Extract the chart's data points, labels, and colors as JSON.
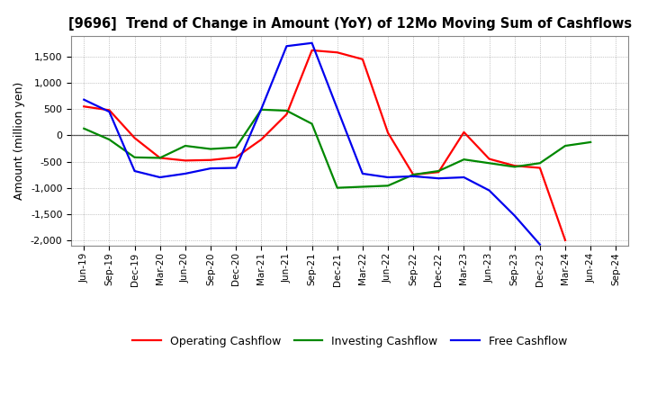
{
  "title": "[9696]  Trend of Change in Amount (YoY) of 12Mo Moving Sum of Cashflows",
  "ylabel": "Amount (million yen)",
  "x_labels": [
    "Jun-19",
    "Sep-19",
    "Dec-19",
    "Mar-20",
    "Jun-20",
    "Sep-20",
    "Dec-20",
    "Mar-21",
    "Jun-21",
    "Sep-21",
    "Dec-21",
    "Mar-22",
    "Jun-22",
    "Sep-22",
    "Dec-22",
    "Mar-23",
    "Jun-23",
    "Sep-23",
    "Dec-23",
    "Mar-24",
    "Jun-24",
    "Sep-24"
  ],
  "operating": [
    550,
    480,
    -50,
    -430,
    -480,
    -470,
    -420,
    -80,
    400,
    1620,
    1580,
    1450,
    50,
    -750,
    -700,
    60,
    -450,
    -580,
    -620,
    -2000,
    null,
    null
  ],
  "investing": [
    130,
    -80,
    -420,
    -430,
    -200,
    -260,
    -230,
    490,
    470,
    220,
    -1000,
    -980,
    -960,
    -750,
    -680,
    -460,
    -530,
    -600,
    -530,
    -200,
    -130,
    null
  ],
  "free": [
    680,
    450,
    -680,
    -800,
    -730,
    -630,
    -620,
    500,
    1700,
    1760,
    510,
    -730,
    -800,
    -780,
    -820,
    -800,
    -1050,
    -1530,
    -2080,
    null,
    null,
    null
  ],
  "operating_color": "#ff0000",
  "investing_color": "#008800",
  "free_color": "#0000ee",
  "ylim": [
    -2100,
    1900
  ],
  "yticks": [
    -2000,
    -1500,
    -1000,
    -500,
    0,
    500,
    1000,
    1500
  ],
  "legend_labels": [
    "Operating Cashflow",
    "Investing Cashflow",
    "Free Cashflow"
  ],
  "bg_color": "#ffffff",
  "grid_color": "#999999"
}
